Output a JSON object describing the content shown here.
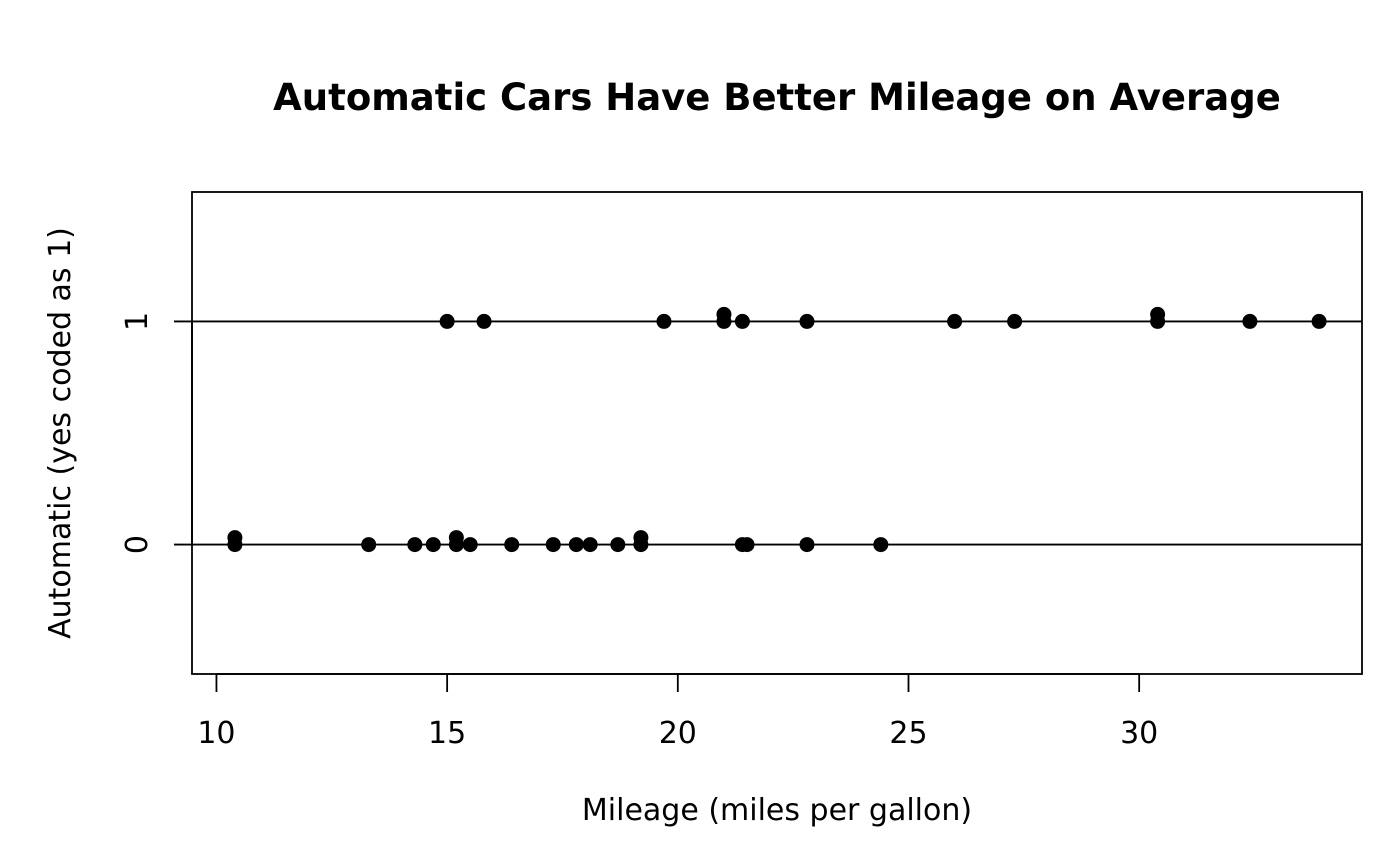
{
  "chart_data": {
    "type": "scatter",
    "title": "Automatic Cars Have Better Mileage on Average",
    "xlabel": "Mileage (miles per gallon)",
    "ylabel": "Automatic (yes coded as 1)",
    "xlim": [
      9.47,
      34.83
    ],
    "ylim": [
      -0.58,
      1.58
    ],
    "x_ticks": [
      10,
      15,
      20,
      25,
      30
    ],
    "y_ticks": [
      0,
      1
    ],
    "reference_lines": [
      0,
      1
    ],
    "grid": false,
    "legend": "none",
    "point_color": "#000000",
    "series": [
      {
        "y": 1,
        "x": [
          15.0,
          15.8,
          19.7,
          21.0,
          21.0,
          21.4,
          22.8,
          26.0,
          27.3,
          30.4,
          30.4,
          32.4,
          33.9
        ]
      },
      {
        "y": 0,
        "x": [
          10.4,
          10.4,
          13.3,
          14.3,
          14.7,
          15.2,
          15.2,
          15.5,
          16.4,
          17.3,
          17.8,
          18.1,
          18.7,
          19.2,
          19.2,
          21.4,
          21.5,
          22.8,
          24.4
        ]
      }
    ]
  }
}
